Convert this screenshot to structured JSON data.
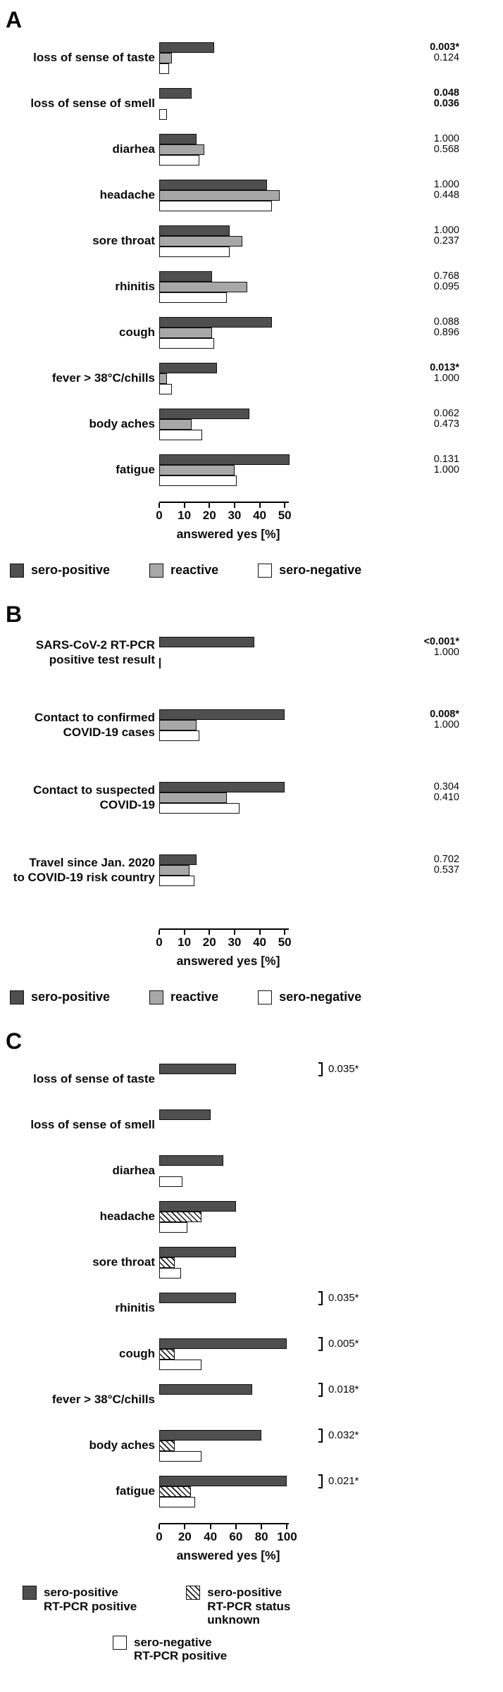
{
  "colors": {
    "sero_positive": "#4f4f4f",
    "reactive": "#a8a8a8",
    "sero_negative": "#ffffff",
    "bar_border": "#111111"
  },
  "chart_data": [
    {
      "type": "bar",
      "panel": "A",
      "orientation": "horizontal",
      "xlabel": "answered yes [%]",
      "xlim": [
        0,
        55
      ],
      "ticks": [
        0,
        10,
        20,
        30,
        40,
        50
      ],
      "legend_position": "bottom",
      "series": [
        {
          "name": "sero-positive",
          "swatch": "dark"
        },
        {
          "name": "reactive",
          "swatch": "mid"
        },
        {
          "name": "sero-negative",
          "swatch": "white"
        }
      ],
      "legend": [
        {
          "label": "sero-positive",
          "swatch": "dark"
        },
        {
          "label": "reactive",
          "swatch": "mid"
        },
        {
          "label": "sero-negative",
          "swatch": "white"
        }
      ],
      "rows": [
        {
          "label": "loss of sense of taste",
          "values": [
            22,
            5,
            4
          ],
          "pvalues": [
            {
              "text": "0.003*",
              "bold": true
            },
            {
              "text": "0.124",
              "bold": false
            }
          ]
        },
        {
          "label": "loss of sense of smell",
          "values": [
            13,
            0,
            3
          ],
          "pvalues": [
            {
              "text": "0.048",
              "bold": true
            },
            {
              "text": "0.036",
              "bold": true
            }
          ]
        },
        {
          "label": "diarhea",
          "values": [
            15,
            18,
            16
          ],
          "pvalues": [
            {
              "text": "1.000",
              "bold": false
            },
            {
              "text": "0.568",
              "bold": false
            }
          ]
        },
        {
          "label": "headache",
          "values": [
            43,
            48,
            45
          ],
          "pvalues": [
            {
              "text": "1.000",
              "bold": false
            },
            {
              "text": "0.448",
              "bold": false
            }
          ]
        },
        {
          "label": "sore throat",
          "values": [
            28,
            33,
            28
          ],
          "pvalues": [
            {
              "text": "1.000",
              "bold": false
            },
            {
              "text": "0.237",
              "bold": false
            }
          ]
        },
        {
          "label": "rhinitis",
          "values": [
            21,
            35,
            27
          ],
          "pvalues": [
            {
              "text": "0.768",
              "bold": false
            },
            {
              "text": "0.095",
              "bold": false
            }
          ]
        },
        {
          "label": "cough",
          "values": [
            45,
            21,
            22
          ],
          "pvalues": [
            {
              "text": "0.088",
              "bold": false
            },
            {
              "text": "0.896",
              "bold": false
            }
          ]
        },
        {
          "label": "fever > 38°C/chills",
          "values": [
            23,
            3,
            5
          ],
          "pvalues": [
            {
              "text": "0.013*",
              "bold": true
            },
            {
              "text": "1.000",
              "bold": false
            }
          ]
        },
        {
          "label": "body aches",
          "values": [
            36,
            13,
            17
          ],
          "pvalues": [
            {
              "text": "0.062",
              "bold": false
            },
            {
              "text": "0.473",
              "bold": false
            }
          ]
        },
        {
          "label": "fatigue",
          "values": [
            52,
            30,
            31
          ],
          "pvalues": [
            {
              "text": "0.131",
              "bold": false
            },
            {
              "text": "1.000",
              "bold": false
            }
          ]
        }
      ]
    },
    {
      "type": "bar",
      "panel": "B",
      "orientation": "horizontal",
      "xlabel": "answered yes [%]",
      "xlim": [
        0,
        55
      ],
      "ticks": [
        0,
        10,
        20,
        30,
        40,
        50
      ],
      "legend_position": "bottom",
      "series": [
        {
          "name": "sero-positive",
          "swatch": "dark"
        },
        {
          "name": "reactive",
          "swatch": "mid"
        },
        {
          "name": "sero-negative",
          "swatch": "white"
        }
      ],
      "legend": [
        {
          "label": "sero-positive",
          "swatch": "dark"
        },
        {
          "label": "reactive",
          "swatch": "mid"
        },
        {
          "label": "sero-negative",
          "swatch": "white"
        }
      ],
      "rows": [
        {
          "label": "SARS-CoV-2 RT-PCR\npositive test result",
          "values": [
            38,
            0,
            0.5
          ],
          "pvalues": [
            {
              "text": "<0.001*",
              "bold": true
            },
            {
              "text": "1.000",
              "bold": false
            }
          ]
        },
        {
          "label": "Contact to confirmed\nCOVID-19 cases",
          "values": [
            50,
            15,
            16
          ],
          "pvalues": [
            {
              "text": "0.008*",
              "bold": true
            },
            {
              "text": "1.000",
              "bold": false
            }
          ]
        },
        {
          "label": "Contact to suspected\nCOVID-19",
          "values": [
            50,
            27,
            32
          ],
          "pvalues": [
            {
              "text": "0.304",
              "bold": false
            },
            {
              "text": "0.410",
              "bold": false
            }
          ]
        },
        {
          "label": "Travel since Jan. 2020\nto COVID-19 risk country",
          "values": [
            15,
            12,
            14
          ],
          "pvalues": [
            {
              "text": "0.702",
              "bold": false
            },
            {
              "text": "0.537",
              "bold": false
            }
          ]
        }
      ]
    },
    {
      "type": "bar",
      "panel": "C",
      "orientation": "horizontal",
      "xlabel": "answered yes [%]",
      "xlim": [
        0,
        108
      ],
      "ticks": [
        0,
        20,
        40,
        60,
        80,
        100
      ],
      "legend_position": "bottom",
      "series": [
        {
          "name": "sero-positive RT-PCR positive",
          "swatch": "dark"
        },
        {
          "name": "sero-positive RT-PCR status unknown",
          "swatch": "hatch"
        },
        {
          "name": "sero-negative RT-PCR positive",
          "swatch": "white"
        }
      ],
      "legend": [
        {
          "label": "sero-positive\nRT-PCR positive",
          "swatch": "dark"
        },
        {
          "label": "sero-positive\nRT-PCR status\nunknown",
          "swatch": "hatch"
        },
        {
          "label": "sero-negative\nRT-PCR positive",
          "swatch": "white"
        }
      ],
      "rows": [
        {
          "label": "loss of sense of taste",
          "values": [
            60,
            0,
            0
          ],
          "pvalues": [
            {
              "text": "0.035*",
              "bold": false,
              "bracket": true
            }
          ]
        },
        {
          "label": "loss of sense of smell",
          "values": [
            40,
            0,
            0
          ],
          "pvalues": []
        },
        {
          "label": "diarhea",
          "values": [
            50,
            0,
            18
          ],
          "pvalues": []
        },
        {
          "label": "headache",
          "values": [
            60,
            33,
            22
          ],
          "pvalues": []
        },
        {
          "label": "sore throat",
          "values": [
            60,
            12,
            17
          ],
          "pvalues": []
        },
        {
          "label": "rhinitis",
          "values": [
            60,
            0,
            0
          ],
          "pvalues": [
            {
              "text": "0.035*",
              "bold": false,
              "bracket": true
            }
          ]
        },
        {
          "label": "cough",
          "values": [
            100,
            12,
            33
          ],
          "pvalues": [
            {
              "text": "0.005*",
              "bold": false,
              "bracket": true
            }
          ]
        },
        {
          "label": "fever > 38°C/chills",
          "values": [
            73,
            0,
            0
          ],
          "pvalues": [
            {
              "text": "0.018*",
              "bold": false,
              "bracket": true
            }
          ]
        },
        {
          "label": "body aches",
          "values": [
            80,
            12,
            33
          ],
          "pvalues": [
            {
              "text": "0.032*",
              "bold": false,
              "bracket": true
            }
          ]
        },
        {
          "label": "fatigue",
          "values": [
            100,
            25,
            28
          ],
          "pvalues": [
            {
              "text": "0.021*",
              "bold": false,
              "bracket": true
            }
          ]
        }
      ]
    }
  ]
}
